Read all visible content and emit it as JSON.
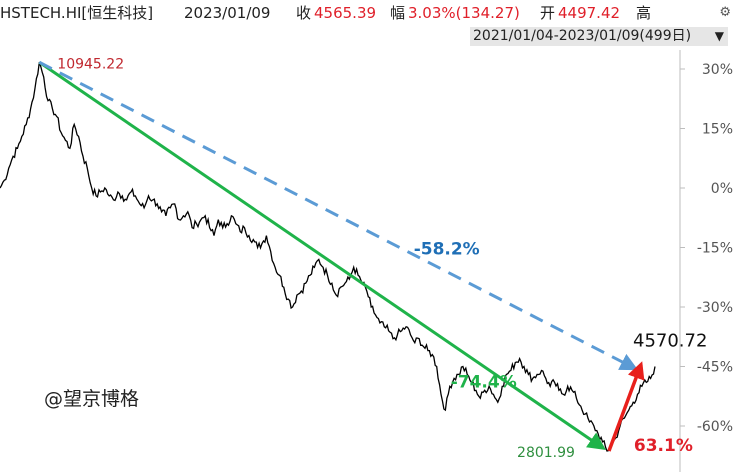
{
  "header": {
    "symbol": "HSTECH.HI[恒生科技]",
    "date": "2023/01/09",
    "close_label": "收",
    "close_value": "4565.39",
    "change_label": "幅",
    "change_value": "3.03%(134.27)",
    "open_label": "开",
    "open_value": "4497.42",
    "high_label": "高",
    "range": "2021/01/04-2023/01/09(499日)",
    "settings_icon": "gear-icon",
    "range_dropdown_icon": "chevron-down-icon"
  },
  "watermark": "@望京博格",
  "colors": {
    "price_line": "#000000",
    "green": "#1fb34a",
    "blue_dashed": "#5b9bd5",
    "red": "#e8201c",
    "red_text": "#e0202a",
    "blue_text": "#1f6fb6",
    "max_label": "#c0282f",
    "min_label": "#2f8f3f"
  },
  "chart_data": {
    "type": "line",
    "title": "",
    "y_axis_label": "",
    "y_axis_ticks": [
      "30%",
      "15%",
      "0%",
      "-15%",
      "-30%",
      "-45%",
      "-60%"
    ],
    "y_axis_tick_values": [
      30,
      15,
      0,
      -15,
      -30,
      -45,
      -60
    ],
    "y_axis_position": "right",
    "ylim": [
      -67,
      33
    ],
    "grid": false,
    "x_range": [
      "2021/01/04",
      "2023/01/09"
    ],
    "base_value": 8310,
    "series": [
      {
        "name": "",
        "unit": "percent change",
        "values": [
          0,
          2,
          5,
          8,
          10,
          13,
          16,
          20,
          25,
          31.7,
          28,
          22,
          20,
          18,
          14,
          12,
          10,
          16,
          13,
          8,
          5,
          0,
          -2,
          -1,
          0,
          -2,
          -3,
          -1,
          -2,
          -3,
          -1,
          -2,
          -4,
          -5,
          -2,
          -3,
          -4,
          -6,
          -7,
          -5,
          -4,
          -8,
          -7,
          -6,
          -10,
          -9,
          -8,
          -7,
          -10,
          -12,
          -8,
          -10,
          -9,
          -7,
          -9,
          -11,
          -10,
          -12,
          -13,
          -15,
          -14,
          -12,
          -16,
          -20,
          -22,
          -25,
          -28,
          -30,
          -27,
          -26,
          -24,
          -22,
          -20,
          -18,
          -20,
          -22,
          -24,
          -27,
          -25,
          -24,
          -23,
          -20,
          -22,
          -24,
          -26,
          -30,
          -32,
          -34,
          -35,
          -36,
          -38,
          -37,
          -36,
          -35,
          -37,
          -39,
          -38,
          -40,
          -41,
          -42,
          -45,
          -52,
          -56,
          -50,
          -48,
          -47,
          -45,
          -47,
          -49,
          -51,
          -53,
          -51,
          -50,
          -52,
          -54,
          -50,
          -47,
          -46,
          -44,
          -43,
          -45,
          -47,
          -48,
          -47,
          -46,
          -48,
          -50,
          -49,
          -51,
          -52,
          -50,
          -51,
          -53,
          -55,
          -57,
          -59,
          -60,
          -62,
          -64,
          -66.3,
          -65,
          -63,
          -60,
          -58,
          -56,
          -54,
          -52,
          -50,
          -49,
          -48,
          -45
        ]
      }
    ],
    "annotations": [
      {
        "label": "10945.22",
        "kind": "max",
        "value": 31.7
      },
      {
        "label": "2801.99",
        "kind": "min",
        "value": -66.3
      },
      {
        "label": "4570.72",
        "kind": "end"
      },
      {
        "label": "-74.4%",
        "kind": "drop-high-to-low",
        "color": "green"
      },
      {
        "label": "-58.2%",
        "kind": "high-to-end",
        "color": "blue",
        "style": "dashed"
      },
      {
        "label": "63.1%",
        "kind": "low-to-end",
        "color": "red"
      }
    ]
  }
}
